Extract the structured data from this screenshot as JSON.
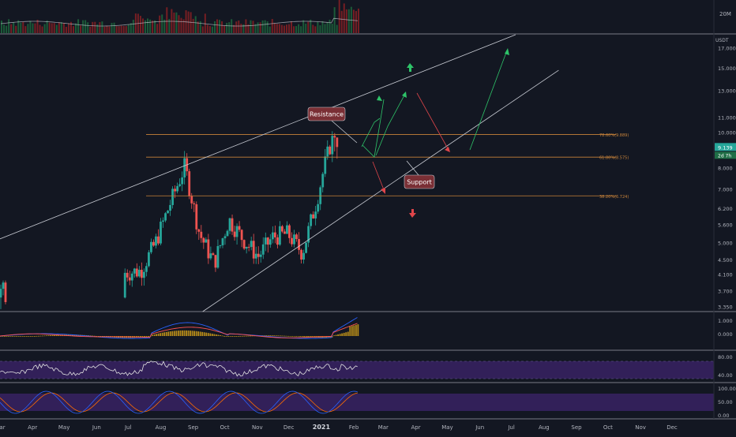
{
  "colors": {
    "background": "#131722",
    "grid": "#1e222d",
    "pane_border": "#787b86",
    "axis_text": "#b2b5be",
    "up": "#26a69a",
    "down": "#ef5350",
    "fib_line": "#c8833a",
    "fib_label": "#c8833a",
    "trend_line": "#c9ccd4",
    "green_path": "#2ec469",
    "red_path": "#e0454a",
    "callout_fill": "#7a2f35",
    "callout_text": "#ffffff",
    "macd_line": "#2962ff",
    "signal_line": "#ff5252",
    "histogram": "#d4a017",
    "rsi_line": "#e0e0e0",
    "rsi_band": "#3b2368",
    "stoch_k": "#2962ff",
    "stoch_d": "#ff6d00",
    "price_badge": "#26a69a",
    "countdown_badge": "#1f6e46"
  },
  "volume_axis": {
    "label": "20M"
  },
  "price_axis": {
    "currency": "USDT",
    "scale": "log",
    "ticks": [
      "17.000",
      "15.000",
      "13.000",
      "11.000",
      "10.000",
      "9.000",
      "8.000",
      "7.000",
      "6.200",
      "5.600",
      "5.000",
      "4.500",
      "4.100",
      "3.700",
      "3.350"
    ],
    "last_price": "9.139",
    "countdown": "2d 7h"
  },
  "time_axis": {
    "labels": [
      "Mar",
      "Apr",
      "May",
      "Jun",
      "Jul",
      "Aug",
      "Sep",
      "Oct",
      "Nov",
      "Dec",
      "2021",
      "Feb",
      "Mar",
      "Apr",
      "May",
      "Jun",
      "Jul",
      "Aug",
      "Sep",
      "Oct",
      "Nov",
      "Dec"
    ],
    "bold_label": "2021"
  },
  "macd_axis": {
    "ticks": [
      "1.000",
      "0.000"
    ]
  },
  "rsi_axis": {
    "ticks": [
      "80.00",
      "40.00"
    ]
  },
  "stoch_axis": {
    "ticks": [
      "100.00",
      "50.00",
      "0.00"
    ]
  },
  "annotations": {
    "resistance": "Resistance",
    "support": "Support"
  },
  "fib_levels": [
    {
      "ratio": 0.786,
      "label": "78.60%(9.889)",
      "price": 9.889
    },
    {
      "ratio": 0.618,
      "label": "61.80%(8.575)",
      "price": 8.575
    },
    {
      "ratio": 0.382,
      "label": "38.20%(6.724)",
      "price": 6.724
    }
  ],
  "chart_data": {
    "type": "candlestick",
    "pair_quote": "USDT",
    "y_scale": "log",
    "ylim": [
      3.25,
      18.5
    ],
    "x_range": [
      "2020-03",
      "2021-12"
    ],
    "candles_weekly_summary": [
      {
        "date": "2020-03-02",
        "open": 3.6,
        "high": 3.9,
        "low": 3.3,
        "close": 3.5
      },
      {
        "date": "2020-06-29",
        "open": 3.6,
        "high": 4.2,
        "low": 3.4,
        "close": 4.15
      },
      {
        "date": "2020-07-13",
        "open": 4.1,
        "high": 4.3,
        "low": 3.8,
        "close": 4.2
      },
      {
        "date": "2020-07-27",
        "open": 4.3,
        "high": 5.2,
        "low": 4.1,
        "close": 5.0
      },
      {
        "date": "2020-08-10",
        "open": 5.3,
        "high": 6.8,
        "low": 5.1,
        "close": 6.4
      },
      {
        "date": "2020-08-24",
        "open": 7.2,
        "high": 8.8,
        "low": 6.3,
        "close": 8.1
      },
      {
        "date": "2020-09-07",
        "open": 7.1,
        "high": 7.4,
        "low": 4.9,
        "close": 5.3
      },
      {
        "date": "2020-09-21",
        "open": 4.7,
        "high": 5.0,
        "low": 4.1,
        "close": 4.4
      },
      {
        "date": "2020-10-05",
        "open": 4.9,
        "high": 6.2,
        "low": 4.8,
        "close": 5.8
      },
      {
        "date": "2020-10-19",
        "open": 5.6,
        "high": 5.8,
        "low": 4.9,
        "close": 5.1
      },
      {
        "date": "2020-11-02",
        "open": 4.9,
        "high": 5.2,
        "low": 4.4,
        "close": 4.6
      },
      {
        "date": "2020-11-16",
        "open": 4.9,
        "high": 5.4,
        "low": 4.7,
        "close": 5.2
      },
      {
        "date": "2020-11-30",
        "open": 5.5,
        "high": 6.0,
        "low": 5.1,
        "close": 5.3
      },
      {
        "date": "2020-12-14",
        "open": 5.0,
        "high": 5.1,
        "low": 4.5,
        "close": 4.7
      },
      {
        "date": "2020-12-28",
        "open": 5.1,
        "high": 6.9,
        "low": 4.9,
        "close": 6.6
      },
      {
        "date": "2021-01-04",
        "open": 6.6,
        "high": 8.6,
        "low": 6.3,
        "close": 8.1
      },
      {
        "date": "2021-01-11",
        "open": 8.4,
        "high": 9.9,
        "low": 8.3,
        "close": 9.6
      },
      {
        "date": "2021-01-15",
        "open": 9.6,
        "high": 9.7,
        "low": 9.0,
        "close": 9.139
      }
    ],
    "trendlines": [
      {
        "name": "upper channel",
        "from": {
          "date": "2020-02-20",
          "price": 5.0
        },
        "to": {
          "date": "2021-07-05",
          "price": 18.5
        }
      },
      {
        "name": "lower channel",
        "from": {
          "date": "2020-09-10",
          "price": 3.25
        },
        "to": {
          "date": "2021-08-15",
          "price": 14.8
        }
      }
    ]
  }
}
